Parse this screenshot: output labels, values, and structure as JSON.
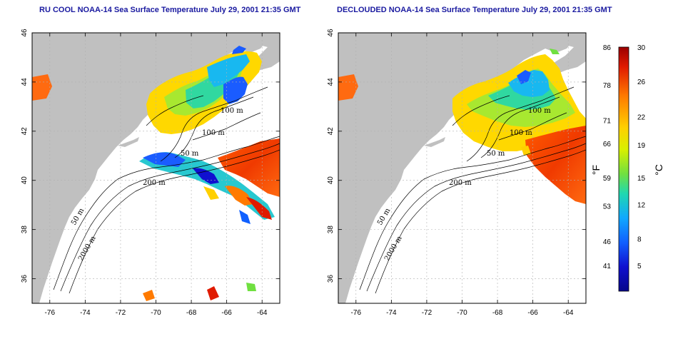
{
  "titles": {
    "left": "RU COOL NOAA-14 Sea Surface Temperature July 29, 2001 21:35 GMT",
    "right": "DECLOUDED NOAA-14 Sea Surface Temperature July 29, 2001 21:35 GMT"
  },
  "axes": {
    "x_ticks": [
      -76,
      -74,
      -72,
      -70,
      -68,
      -66,
      -64
    ],
    "x_tick_labels": [
      "-76",
      "-74",
      "-72",
      "-70",
      "-68",
      "-66",
      "-64"
    ],
    "y_ticks": [
      46,
      44,
      42,
      40,
      38,
      36
    ],
    "y_tick_labels": [
      "46",
      "44",
      "42",
      "40",
      "38",
      "36"
    ],
    "lon_range": [
      -77,
      -63
    ],
    "lat_range": [
      35,
      46
    ]
  },
  "contour_labels": {
    "m100a": "100 m",
    "m100b": "100 m",
    "m50a": "50 m",
    "m200": "200 m",
    "m50b": "50 m",
    "m2000": "2000 m"
  },
  "colorbar": {
    "fahrenheit_labels": [
      "86",
      "78",
      "71",
      "66",
      "59",
      "53",
      "46",
      "41"
    ],
    "celsius_labels": [
      "30",
      "26",
      "22",
      "19",
      "15",
      "12",
      "8",
      "5"
    ],
    "fahrenheit_unit": "°F",
    "celsius_unit": "°C",
    "colors": [
      "#9b0000",
      "#e01a00",
      "#ff7a00",
      "#ffd000",
      "#d8f000",
      "#70e040",
      "#20d8b0",
      "#10a8ff",
      "#1060ff",
      "#1010d0",
      "#06068a"
    ]
  },
  "colors": {
    "land": "#c0c0c0",
    "ocean": "#ffffff",
    "grid": "#b0b0b0"
  }
}
